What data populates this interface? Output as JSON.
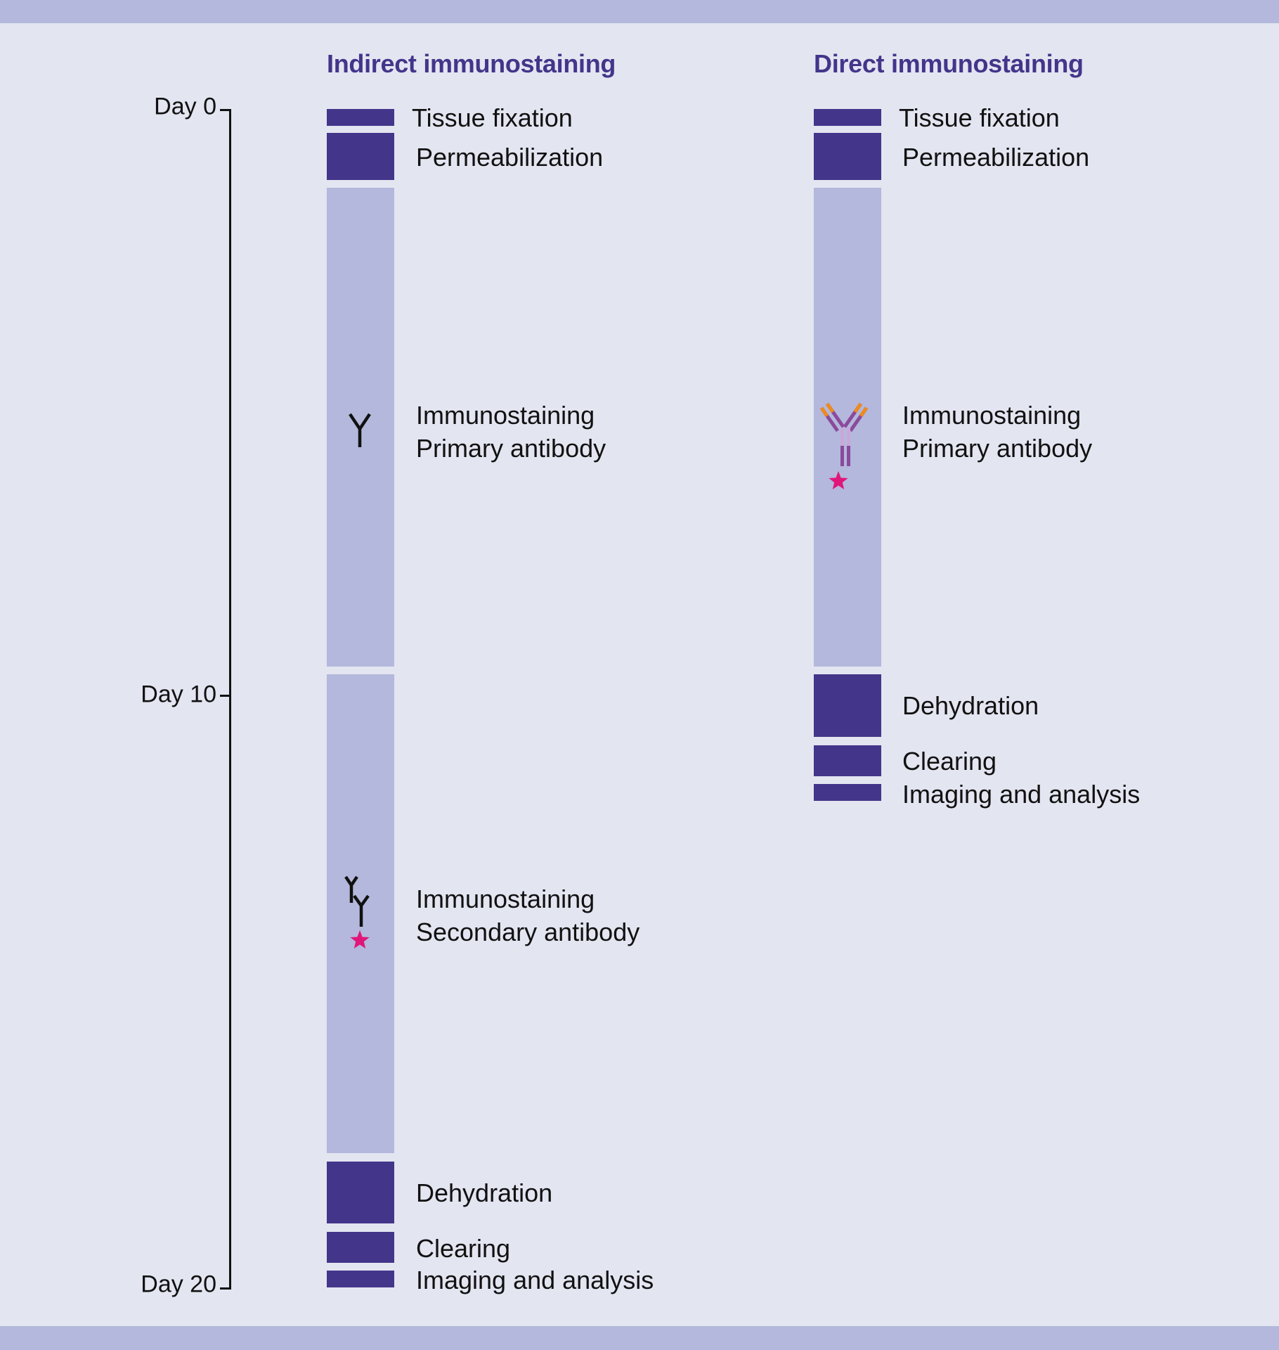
{
  "colors": {
    "dark_block": "#43358a",
    "light_block": "#b3b8dc",
    "background": "#e3e5f1",
    "title": "#43358a",
    "star": "#e0177a"
  },
  "timeline": {
    "day_0": "Day 0",
    "day_10": "Day 10",
    "day_20": "Day 20"
  },
  "indirect": {
    "title": "Indirect immunostaining",
    "steps": {
      "fixation": "Tissue fixation",
      "permeabilization": "Permeabilization",
      "primary_line1": "Immunostaining",
      "primary_line2": "Primary antibody",
      "secondary_line1": "Immunostaining",
      "secondary_line2": "Secondary antibody",
      "dehydration": "Dehydration",
      "clearing": "Clearing",
      "imaging": "Imaging and analysis"
    }
  },
  "direct": {
    "title": "Direct immunostaining",
    "steps": {
      "fixation": "Tissue fixation",
      "permeabilization": "Permeabilization",
      "primary_line1": "Immunostaining",
      "primary_line2": "Primary antibody",
      "dehydration": "Dehydration",
      "clearing": "Clearing",
      "imaging": "Imaging and analysis"
    }
  },
  "icons": {
    "indirect_primary": "primary-antibody-icon",
    "indirect_secondary": "secondary-antibody-with-fluorophore-icon",
    "direct_primary": "labeled-primary-antibody-icon"
  }
}
